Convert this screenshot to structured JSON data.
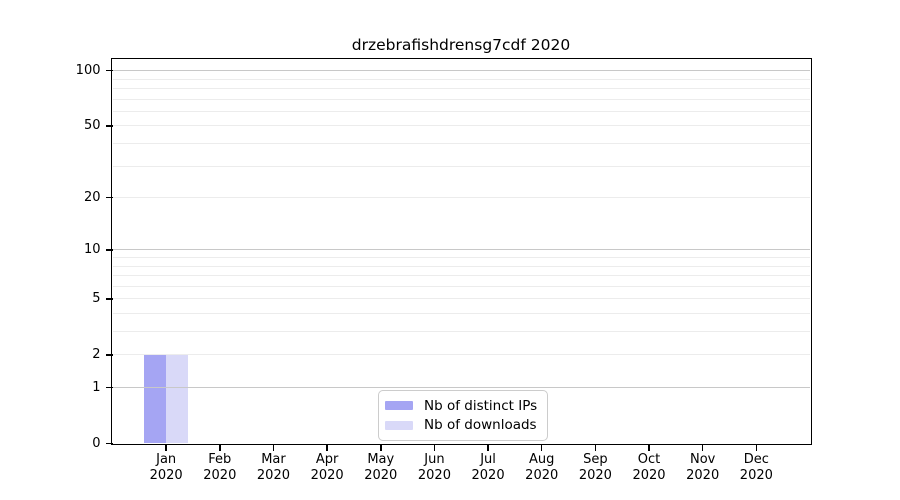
{
  "title": "drzebrafishdrensg7cdf 2020",
  "chart_data": {
    "type": "bar",
    "title": "drzebrafishdrensg7cdf 2020",
    "categories": [
      "Jan 2020",
      "Feb 2020",
      "Mar 2020",
      "Apr 2020",
      "May 2020",
      "Jun 2020",
      "Jul 2020",
      "Aug 2020",
      "Sep 2020",
      "Oct 2020",
      "Nov 2020",
      "Dec 2020"
    ],
    "series": [
      {
        "name": "Nb of distinct IPs",
        "color": "#a5a5f3",
        "values": [
          2,
          0,
          0,
          0,
          0,
          0,
          0,
          0,
          0,
          0,
          0,
          0
        ]
      },
      {
        "name": "Nb of downloads",
        "color": "#d9d9f8",
        "values": [
          2,
          0,
          0,
          0,
          0,
          0,
          0,
          0,
          0,
          0,
          0,
          0
        ]
      }
    ],
    "xlabel": "",
    "ylabel": "",
    "yscale": "log1p",
    "ylim": [
      0,
      115
    ],
    "y_tick_labels": [
      0,
      1,
      2,
      5,
      10,
      20,
      50,
      100
    ],
    "y_major_gridlines": [
      1,
      10,
      100
    ],
    "y_minor_gridlines": [
      2,
      3,
      4,
      5,
      6,
      7,
      8,
      9,
      20,
      30,
      40,
      50,
      60,
      70,
      80,
      90
    ],
    "grid": "horizontal",
    "legend_position": "lower center inside"
  },
  "legend": {
    "items": [
      {
        "label": "Nb of distinct IPs",
        "color": "#a5a5f3"
      },
      {
        "label": "Nb of downloads",
        "color": "#d9d9f8"
      }
    ]
  },
  "colors": {
    "background": "#ffffff",
    "axis": "#000000",
    "grid_major": "#c8c8c8",
    "grid_minor": "#ececec",
    "text": "#000000",
    "legend_border": "#cccccc"
  }
}
